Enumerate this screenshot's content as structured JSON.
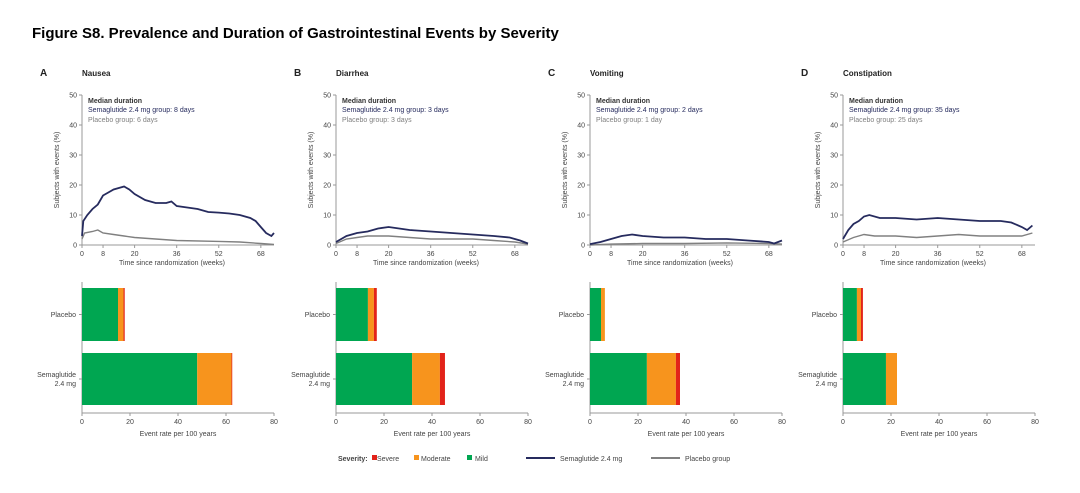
{
  "title": "Figure S8. Prevalence and Duration of Gastrointestinal Events by Severity",
  "colors": {
    "severe": "#e2231a",
    "moderate": "#f7941d",
    "mild": "#00a651",
    "semaglutide": "#262b5e",
    "placebo": "#808080"
  },
  "legend": {
    "severity_label": "Severity:",
    "severe": "Severe",
    "moderate": "Moderate",
    "mild": "Mild",
    "semaglutide": "Semaglutide 2.4 mg",
    "placebo": "Placebo group"
  },
  "chart_data": [
    {
      "panel": "A",
      "title": "Nausea",
      "line": {
        "type": "line",
        "ylabel": "Subjects with events (%)",
        "xlabel": "Time since randomization (weeks)",
        "ylim": [
          0,
          50
        ],
        "yticks": [
          "0",
          "10",
          "20",
          "30",
          "40",
          "50"
        ],
        "xticks": [
          "0",
          "8",
          "20",
          "36",
          "52",
          "68"
        ],
        "annotation": {
          "heading": "Median duration",
          "sema": "Semaglutide 2.4 mg group: 8 days",
          "placebo": "Placebo group: 6 days"
        },
        "series": [
          {
            "name": "Semaglutide 2.4 mg",
            "points": [
              [
                0,
                3
              ],
              [
                0.5,
                8
              ],
              [
                2,
                10
              ],
              [
                4,
                12
              ],
              [
                6,
                13.5
              ],
              [
                8,
                16.5
              ],
              [
                10,
                17.5
              ],
              [
                12,
                18.5
              ],
              [
                14,
                19
              ],
              [
                16,
                19.5
              ],
              [
                18,
                18.5
              ],
              [
                20,
                17
              ],
              [
                24,
                15
              ],
              [
                28,
                14
              ],
              [
                32,
                14
              ],
              [
                34,
                14.5
              ],
              [
                36,
                13
              ],
              [
                40,
                12.5
              ],
              [
                44,
                12
              ],
              [
                48,
                11
              ],
              [
                52,
                10.8
              ],
              [
                56,
                10.5
              ],
              [
                60,
                10
              ],
              [
                64,
                9
              ],
              [
                66,
                8
              ],
              [
                68,
                6
              ],
              [
                70,
                4
              ],
              [
                72,
                3
              ],
              [
                73,
                4
              ]
            ]
          },
          {
            "name": "Placebo group",
            "points": [
              [
                0,
                2
              ],
              [
                1,
                4
              ],
              [
                4,
                4.5
              ],
              [
                6,
                5
              ],
              [
                8,
                4
              ],
              [
                12,
                3.5
              ],
              [
                16,
                3
              ],
              [
                20,
                2.5
              ],
              [
                28,
                2
              ],
              [
                36,
                1.5
              ],
              [
                52,
                1.2
              ],
              [
                60,
                1
              ],
              [
                68,
                0.5
              ],
              [
                73,
                0.2
              ]
            ]
          }
        ]
      },
      "bar": {
        "type": "bar",
        "xlabel": "Event rate per 100 years",
        "xlim": [
          0,
          80
        ],
        "xticks": [
          "0",
          "20",
          "40",
          "60",
          "80"
        ],
        "categories": [
          "Placebo",
          "Semaglutide\n2.4 mg"
        ],
        "series": [
          {
            "name": "Mild",
            "values": [
              15,
              48
            ]
          },
          {
            "name": "Moderate",
            "values": [
              2.3,
              14.3
            ]
          },
          {
            "name": "Severe",
            "values": [
              0.5,
              0.3
            ]
          }
        ]
      }
    },
    {
      "panel": "B",
      "title": "Diarrhea",
      "line": {
        "type": "line",
        "ylabel": "Subjects with events (%)",
        "xlabel": "Time since randomization (weeks)",
        "ylim": [
          0,
          50
        ],
        "yticks": [
          "0",
          "10",
          "20",
          "30",
          "40",
          "50"
        ],
        "xticks": [
          "0",
          "8",
          "20",
          "36",
          "52",
          "68"
        ],
        "annotation": {
          "heading": "Median duration",
          "sema": "Semaglutide 2.4 mg group: 3 days",
          "placebo": "Placebo group: 3 days"
        },
        "series": [
          {
            "name": "Semaglutide 2.4 mg",
            "points": [
              [
                0,
                1
              ],
              [
                4,
                3
              ],
              [
                8,
                4
              ],
              [
                12,
                4.5
              ],
              [
                16,
                5.5
              ],
              [
                20,
                6
              ],
              [
                24,
                5.5
              ],
              [
                28,
                5
              ],
              [
                36,
                4.5
              ],
              [
                44,
                4
              ],
              [
                52,
                3.5
              ],
              [
                60,
                3
              ],
              [
                66,
                2.5
              ],
              [
                70,
                1.5
              ],
              [
                73,
                0.5
              ]
            ]
          },
          {
            "name": "Placebo group",
            "points": [
              [
                0,
                0.5
              ],
              [
                4,
                2
              ],
              [
                8,
                2.5
              ],
              [
                12,
                3
              ],
              [
                20,
                3
              ],
              [
                28,
                2.5
              ],
              [
                36,
                2
              ],
              [
                52,
                2
              ],
              [
                60,
                1.5
              ],
              [
                68,
                1
              ],
              [
                73,
                0.3
              ]
            ]
          }
        ]
      },
      "bar": {
        "type": "bar",
        "xlabel": "Event rate per 100 years",
        "xlim": [
          0,
          80
        ],
        "xticks": [
          "0",
          "20",
          "40",
          "60",
          "80"
        ],
        "categories": [
          "Placebo",
          "Semaglutide\n2.4 mg"
        ],
        "series": [
          {
            "name": "Mild",
            "values": [
              13.3,
              31.7
            ]
          },
          {
            "name": "Moderate",
            "values": [
              2.5,
              11.6
            ]
          },
          {
            "name": "Severe",
            "values": [
              1.2,
              2.1
            ]
          }
        ]
      }
    },
    {
      "panel": "C",
      "title": "Vomiting",
      "line": {
        "type": "line",
        "ylabel": "Subjects with events (%)",
        "xlabel": "Time since randomization (weeks)",
        "ylim": [
          0,
          50
        ],
        "yticks": [
          "0",
          "10",
          "20",
          "30",
          "40",
          "50"
        ],
        "xticks": [
          "0",
          "8",
          "20",
          "36",
          "52",
          "68"
        ],
        "annotation": {
          "heading": "Median duration",
          "sema": "Semaglutide 2.4 mg group: 2 days",
          "placebo": "Placebo group: 1 day"
        },
        "series": [
          {
            "name": "Semaglutide 2.4 mg",
            "points": [
              [
                0,
                0.3
              ],
              [
                4,
                1
              ],
              [
                8,
                2
              ],
              [
                12,
                3
              ],
              [
                16,
                3.5
              ],
              [
                20,
                3
              ],
              [
                28,
                2.5
              ],
              [
                36,
                2.5
              ],
              [
                44,
                2
              ],
              [
                52,
                2
              ],
              [
                60,
                1.5
              ],
              [
                68,
                1
              ],
              [
                70,
                0.5
              ],
              [
                73,
                1.5
              ]
            ]
          },
          {
            "name": "Placebo group",
            "points": [
              [
                0,
                0
              ],
              [
                8,
                0.3
              ],
              [
                20,
                0.5
              ],
              [
                36,
                0.5
              ],
              [
                52,
                0.7
              ],
              [
                68,
                0.5
              ],
              [
                73,
                0.3
              ]
            ]
          }
        ]
      },
      "bar": {
        "type": "bar",
        "xlabel": "Event rate per 100 years",
        "xlim": [
          0,
          80
        ],
        "xticks": [
          "0",
          "20",
          "40",
          "60",
          "80"
        ],
        "categories": [
          "Placebo",
          "Semaglutide\n2.4 mg"
        ],
        "series": [
          {
            "name": "Mild",
            "values": [
              4.6,
              23.7
            ]
          },
          {
            "name": "Moderate",
            "values": [
              1.6,
              12.1
            ]
          },
          {
            "name": "Severe",
            "values": [
              0,
              1.7
            ]
          }
        ]
      }
    },
    {
      "panel": "D",
      "title": "Constipation",
      "line": {
        "type": "line",
        "ylabel": "Subjects with events (%)",
        "xlabel": "Time since randomization (weeks)",
        "ylim": [
          0,
          50
        ],
        "yticks": [
          "0",
          "10",
          "20",
          "30",
          "40",
          "50"
        ],
        "xticks": [
          "0",
          "8",
          "20",
          "36",
          "52",
          "68"
        ],
        "annotation": {
          "heading": "Median duration",
          "sema": "Semaglutide 2.4 mg group: 35 days",
          "placebo": "Placebo group: 25 days"
        },
        "series": [
          {
            "name": "Semaglutide 2.4 mg",
            "points": [
              [
                0,
                2
              ],
              [
                2,
                5
              ],
              [
                4,
                7
              ],
              [
                6,
                8
              ],
              [
                8,
                9.5
              ],
              [
                10,
                10
              ],
              [
                14,
                9
              ],
              [
                20,
                9
              ],
              [
                28,
                8.5
              ],
              [
                36,
                9
              ],
              [
                44,
                8.5
              ],
              [
                52,
                8
              ],
              [
                60,
                8
              ],
              [
                64,
                7.5
              ],
              [
                68,
                6
              ],
              [
                70,
                5
              ],
              [
                72,
                6.5
              ]
            ]
          },
          {
            "name": "Placebo group",
            "points": [
              [
                0,
                1
              ],
              [
                4,
                2.5
              ],
              [
                8,
                3.5
              ],
              [
                12,
                3
              ],
              [
                20,
                3
              ],
              [
                28,
                2.5
              ],
              [
                36,
                3
              ],
              [
                44,
                3.5
              ],
              [
                52,
                3
              ],
              [
                60,
                3
              ],
              [
                68,
                3
              ],
              [
                72,
                4
              ]
            ]
          }
        ]
      },
      "bar": {
        "type": "bar",
        "xlabel": "Event rate per 100 years",
        "xlim": [
          0,
          80
        ],
        "xticks": [
          "0",
          "20",
          "40",
          "60",
          "80"
        ],
        "categories": [
          "Placebo",
          "Semaglutide\n2.4 mg"
        ],
        "series": [
          {
            "name": "Mild",
            "values": [
              5.8,
              17.9
            ]
          },
          {
            "name": "Moderate",
            "values": [
              1.7,
              4.6
            ]
          },
          {
            "name": "Severe",
            "values": [
              0.8,
              0
            ]
          }
        ]
      }
    }
  ]
}
